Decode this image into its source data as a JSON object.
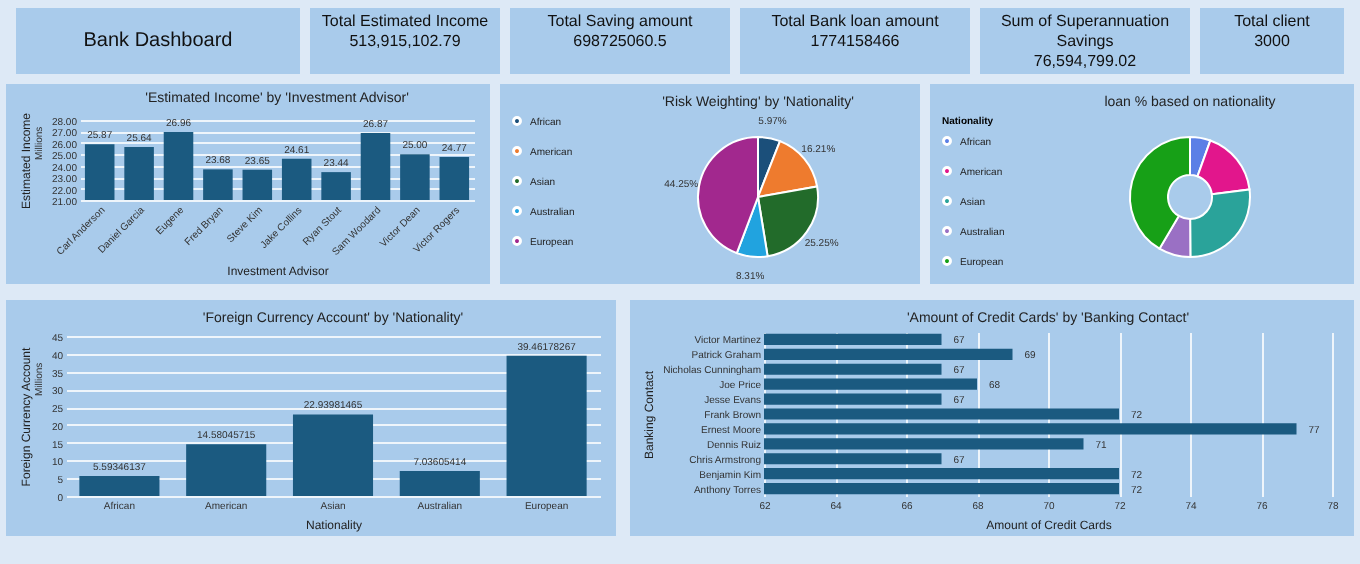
{
  "chart_data": [
    {
      "type": "other",
      "title": "Bank Dashboard",
      "annotations": [
        "Total Estimated Income",
        "513,915,102.79",
        "Total Saving amount",
        "698725060.5",
        "Total Bank loan amount",
        "1774158466",
        "Sum of Superannuation Savings",
        "76,594,799.02",
        "Total client",
        "3000"
      ]
    },
    {
      "type": "bar",
      "title": "'Estimated Income' by 'Investment Advisor'",
      "xlabel": "Investment Advisor",
      "ylabel": "Estimated Income",
      "annotations": [
        "Millions"
      ],
      "categories": [
        "Carl Anderson",
        "Daniel Garcia",
        "Eugene",
        "Fred Bryan",
        "Steve Kim",
        "Jake Collins",
        "Ryan Stout",
        "Sam Woodard",
        "Victor Dean",
        "Victor Rogers"
      ],
      "series": [
        {
          "color": "#1b5a80",
          "values": [
            25.87,
            25.64,
            26.96,
            23.68,
            23.65,
            24.61,
            23.44,
            26.87,
            25.0,
            24.77
          ]
        }
      ],
      "ylim": [
        21,
        28
      ],
      "yticks": [
        {
          "value": 21,
          "label": "21.00"
        },
        {
          "value": 22,
          "label": "22.00"
        },
        {
          "value": 23,
          "label": "23.00"
        },
        {
          "value": 24,
          "label": "24.00"
        },
        {
          "value": 25,
          "label": "25.00"
        },
        {
          "value": 26,
          "label": "26.00"
        },
        {
          "value": 27,
          "label": "27.00"
        },
        {
          "value": 28,
          "label": "28.00"
        }
      ],
      "value_labels": [
        "25.87",
        "25.64",
        "26.96",
        "23.68",
        "23.65",
        "24.61",
        "23.44",
        "26.87",
        "25.00",
        "24.77"
      ],
      "grid": "y",
      "legend": false
    },
    {
      "type": "pie",
      "title": "'Risk Weighting' by 'Nationality'",
      "categories": [
        "African",
        "American",
        "Asian",
        "Australian",
        "European"
      ],
      "values": [
        5.97,
        16.21,
        25.25,
        8.31,
        44.25
      ],
      "colors": [
        "#1b4f7a",
        "#ee7b2e",
        "#226b2a",
        "#21a3df",
        "#a2288e"
      ],
      "value_labels": [
        "5.97%",
        "16.21%",
        "25.25%",
        "8.31%",
        "44.25%"
      ],
      "legend": "left"
    },
    {
      "type": "donut",
      "title": "loan % based on nationality",
      "legend_title": "Nationality",
      "categories": [
        "African",
        "American",
        "Asian",
        "Australian",
        "European"
      ],
      "values": [
        5.5,
        17.5,
        26.9,
        8.6,
        41.5
      ],
      "colors": [
        "#5b7fe6",
        "#e2168c",
        "#2aa39a",
        "#9a70c4",
        "#17a017"
      ],
      "legend": "left"
    },
    {
      "type": "bar",
      "title": "'Foreign Currency Account' by 'Nationality'",
      "xlabel": "Nationality",
      "ylabel": "Foreign Currency Account",
      "annotations": [
        "Millions"
      ],
      "categories": [
        "African",
        "American",
        "Asian",
        "Australian",
        "European"
      ],
      "series": [
        {
          "color": "#1b5a80",
          "values": [
            5.59346137,
            14.58045715,
            22.93981465,
            7.03605414,
            39.46178267
          ]
        }
      ],
      "ylim": [
        0,
        45
      ],
      "yticks": [
        0,
        5,
        10,
        15,
        20,
        25,
        30,
        35,
        40,
        45
      ],
      "data_labels": true,
      "grid": "y",
      "legend": false
    },
    {
      "type": "bar",
      "orientation": "horizontal",
      "title": "'Amount of Credit Cards' by 'Banking Contact'",
      "xlabel": "Amount of Credit Cards",
      "ylabel": "Banking Contact",
      "categories": [
        "Victor Martinez",
        "Patrick Graham",
        "Nicholas Cunningham",
        "Joe Price",
        "Jesse Evans",
        "Frank Brown",
        "Ernest Moore",
        "Dennis Ruiz",
        "Chris Armstrong",
        "Benjamin Kim",
        "Anthony Torres"
      ],
      "series": [
        {
          "color": "#1b5a80",
          "values": [
            67,
            69,
            67,
            68,
            67,
            72,
            77,
            71,
            67,
            72,
            72
          ]
        }
      ],
      "xlim": [
        62,
        78
      ],
      "xticks": [
        62,
        64,
        66,
        68,
        70,
        72,
        74,
        76,
        78
      ],
      "data_labels": true,
      "grid": "x",
      "legend": false
    }
  ]
}
